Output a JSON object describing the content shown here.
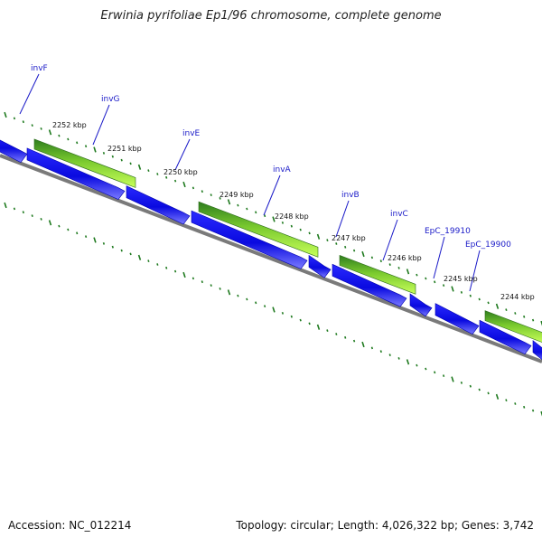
{
  "title": "Erwinia pyrifoliae Ep1/96 chromosome, complete genome",
  "footer": {
    "accession": "Accession: NC_012214",
    "summary": "Topology: circular; Length: 4,026,322 bp; Genes: 3,742"
  },
  "colors": {
    "gene_blue": "#1010e6",
    "gene_blue_light": "#5a5aff",
    "cds_green_light": "#aef03a",
    "cds_green_dark": "#2e7d1e",
    "axis_grey": "#7a7a7a",
    "tick_green": "#1f7a1f",
    "label_blue": "#1a1ac8"
  },
  "kbp_labels": [
    "2252 kbp",
    "2251 kbp",
    "2250 kbp",
    "2249 kbp",
    "2248 kbp",
    "2247 kbp",
    "2246 kbp",
    "2245 kbp",
    "2244 kbp"
  ],
  "gene_labels": [
    "invF",
    "invG",
    "invE",
    "invA",
    "invB",
    "invC",
    "EpC_19910",
    "EpC_19900"
  ]
}
